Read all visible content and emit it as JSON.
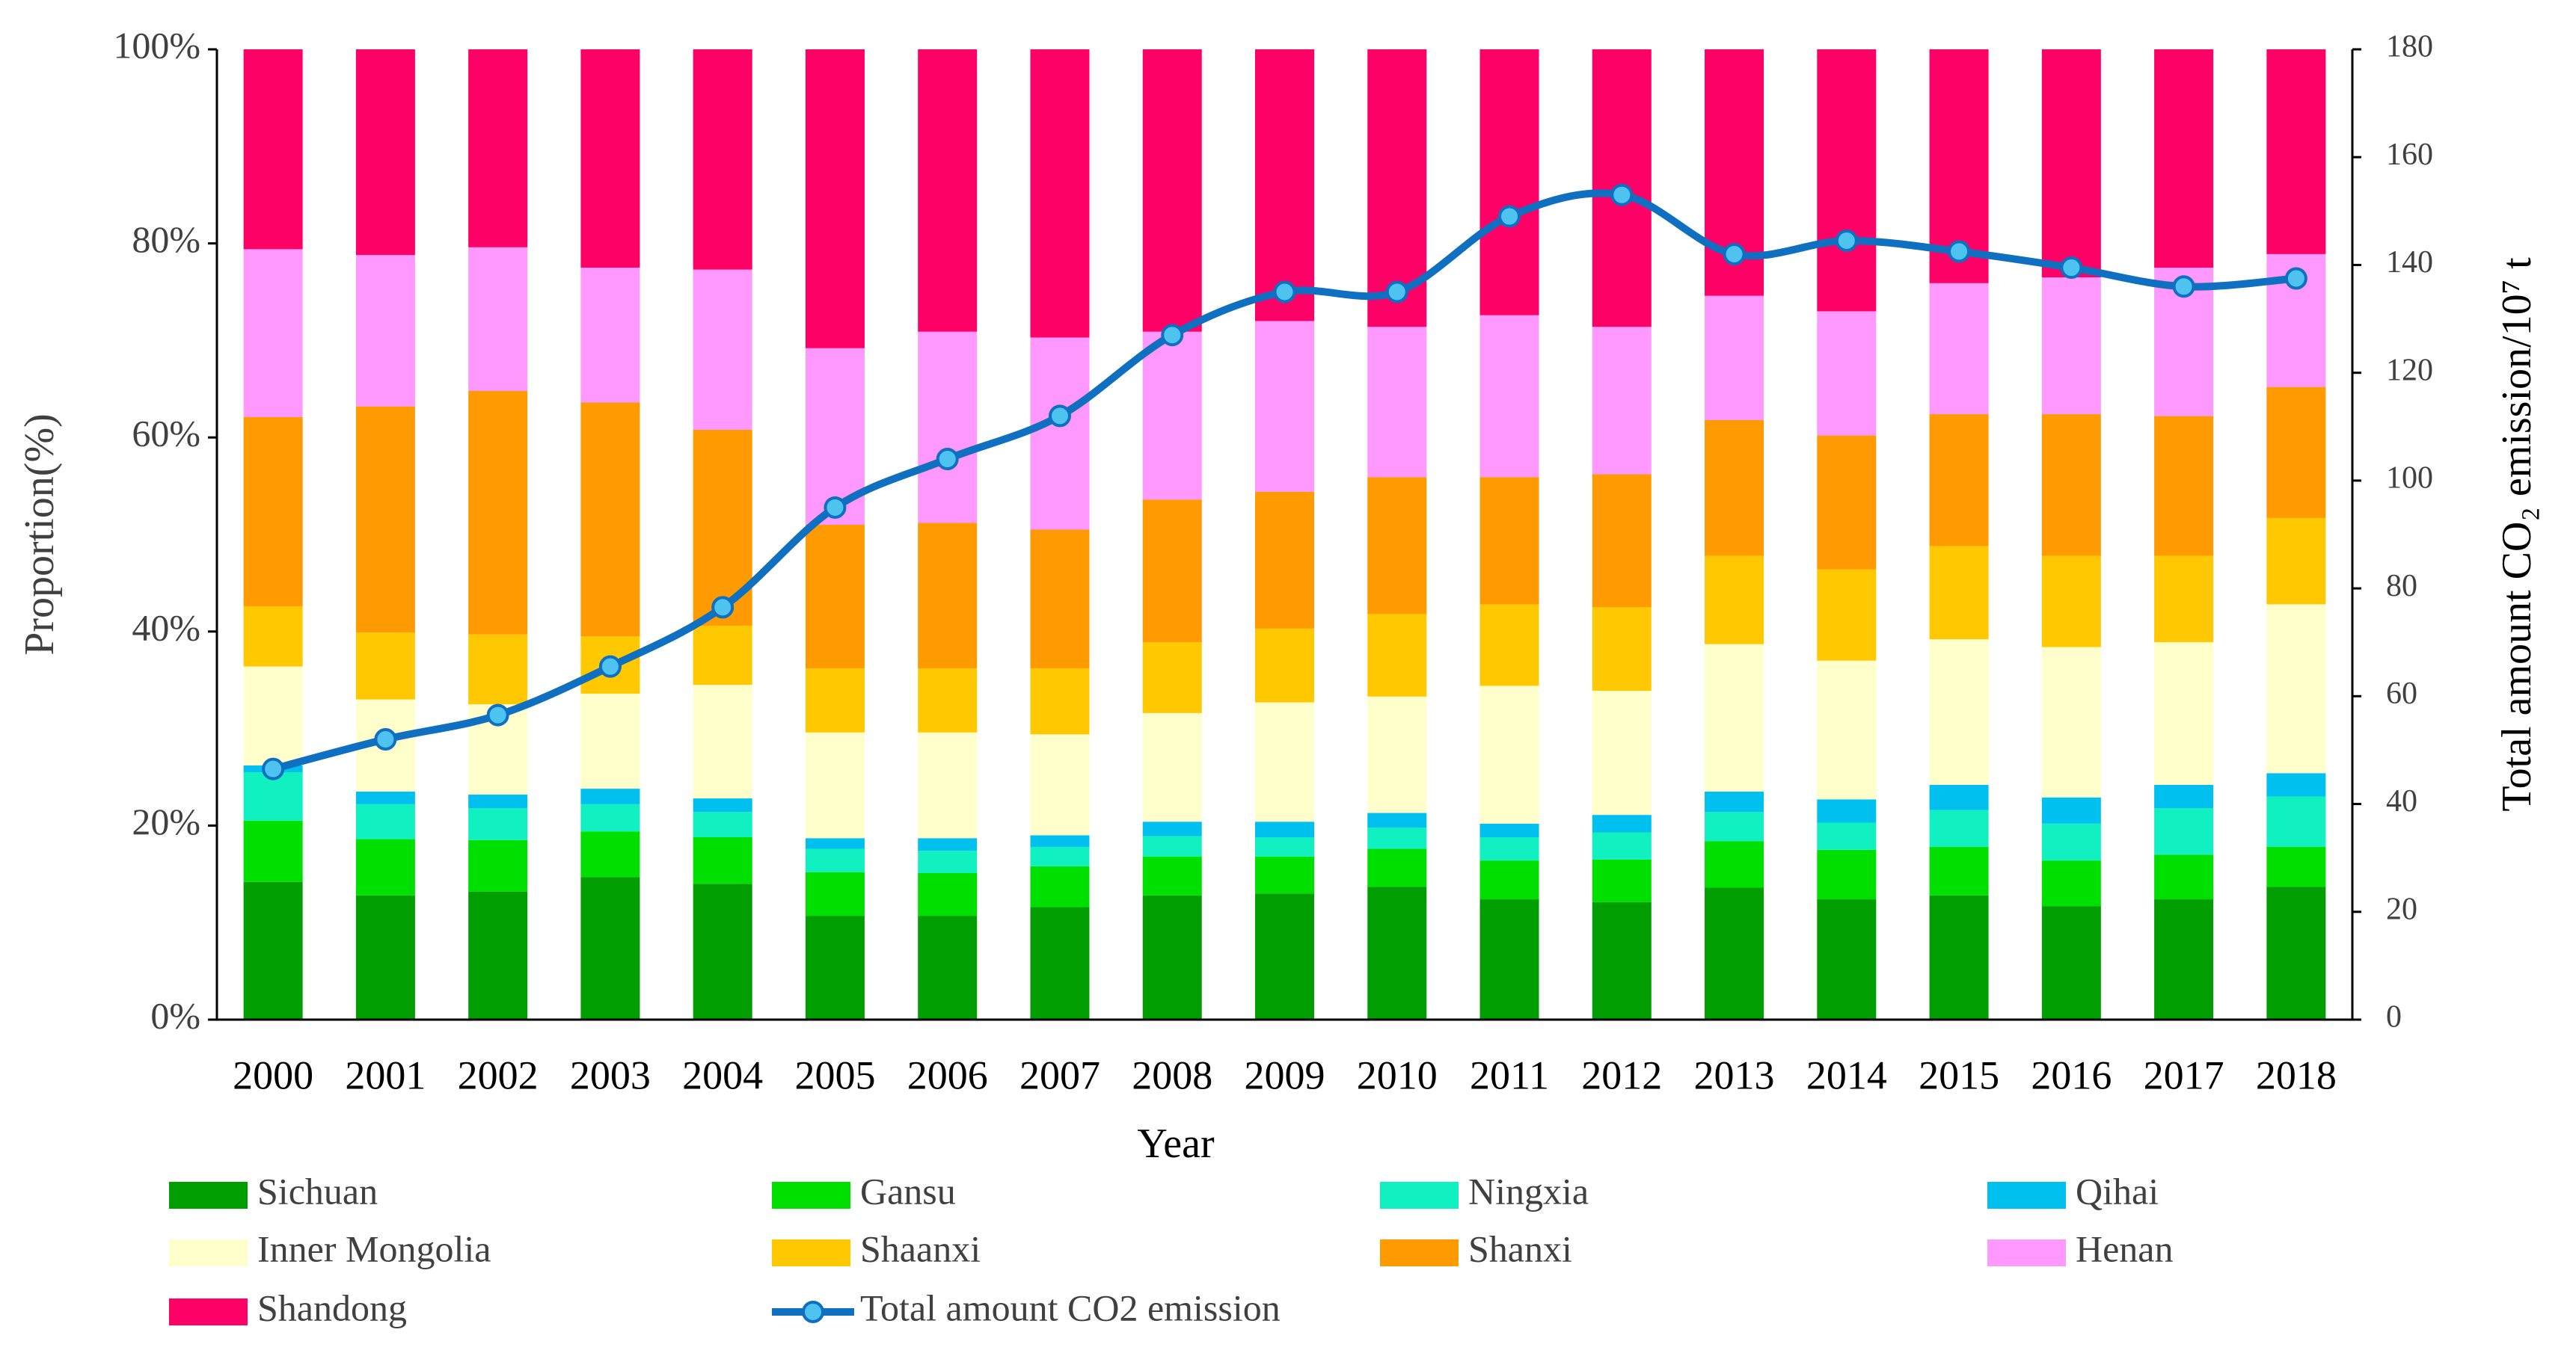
{
  "chart_data": {
    "type": "bar",
    "stacked": true,
    "x_label": "Year",
    "y_label": "Proportion(%)",
    "y2_label": "Total amount CO₂ emission/10⁷ t",
    "categories": [
      "2000",
      "2001",
      "2002",
      "2003",
      "2004",
      "2005",
      "2006",
      "2007",
      "2008",
      "2009",
      "2010",
      "2011",
      "2012",
      "2013",
      "2014",
      "2015",
      "2016",
      "2017",
      "2018"
    ],
    "ylim": [
      0,
      100
    ],
    "yticks": [
      {
        "value": 0,
        "label": "0%"
      },
      {
        "value": 20,
        "label": "20%"
      },
      {
        "value": 40,
        "label": "40%"
      },
      {
        "value": 60,
        "label": "60%"
      },
      {
        "value": 80,
        "label": "80%"
      },
      {
        "value": 100,
        "label": "100%"
      }
    ],
    "y2lim": [
      0,
      180
    ],
    "y2ticks": [
      0,
      20,
      40,
      60,
      80,
      100,
      120,
      140,
      160,
      180
    ],
    "series": [
      {
        "name": "Sichuan",
        "color": "#009e00",
        "values": [
          14.2,
          12.8,
          13.2,
          14.7,
          14.0,
          10.7,
          10.7,
          11.6,
          12.8,
          13.0,
          13.7,
          12.4,
          12.1,
          13.6,
          12.4,
          12.8,
          11.7,
          12.4,
          13.7
        ]
      },
      {
        "name": "Gansu",
        "color": "#00e000",
        "values": [
          6.3,
          5.8,
          5.3,
          4.7,
          4.8,
          4.5,
          4.4,
          4.2,
          4.0,
          3.8,
          3.9,
          4.0,
          4.4,
          4.8,
          5.1,
          5.0,
          4.7,
          4.6,
          4.1
        ]
      },
      {
        "name": "Ningxia",
        "color": "#10f0c0",
        "values": [
          5.0,
          3.6,
          3.3,
          2.8,
          2.6,
          2.4,
          2.3,
          2.0,
          2.1,
          2.0,
          2.2,
          2.4,
          2.8,
          3.0,
          2.8,
          3.8,
          3.8,
          4.8,
          5.2
        ]
      },
      {
        "name": "Qihai",
        "color": "#00c0f0",
        "values": [
          0.7,
          1.3,
          1.4,
          1.6,
          1.4,
          1.1,
          1.3,
          1.2,
          1.5,
          1.6,
          1.5,
          1.4,
          1.8,
          2.1,
          2.4,
          2.6,
          2.7,
          2.4,
          2.4
        ]
      },
      {
        "name": "Inner Mongolia",
        "color": "#ffffcc",
        "values": [
          10.2,
          9.5,
          9.3,
          9.8,
          11.7,
          10.9,
          10.9,
          10.4,
          11.2,
          12.3,
          12.0,
          14.2,
          12.8,
          15.2,
          14.3,
          15.0,
          15.5,
          14.7,
          17.4
        ]
      },
      {
        "name": "Shaanxi",
        "color": "#ffc800",
        "values": [
          6.2,
          6.9,
          7.2,
          5.9,
          6.1,
          6.6,
          6.6,
          6.8,
          7.3,
          7.6,
          8.5,
          8.4,
          8.6,
          9.1,
          9.4,
          9.6,
          9.4,
          8.9,
          8.9
        ]
      },
      {
        "name": "Shanxi",
        "color": "#ff9a00",
        "values": [
          19.5,
          23.3,
          25.1,
          24.1,
          20.2,
          14.8,
          15.0,
          14.3,
          14.7,
          14.1,
          14.1,
          13.1,
          13.7,
          14.0,
          13.8,
          13.6,
          14.6,
          14.4,
          13.5
        ]
      },
      {
        "name": "Henan",
        "color": "#ff99ff",
        "values": [
          17.3,
          15.6,
          14.8,
          13.9,
          16.5,
          18.2,
          19.7,
          19.8,
          17.3,
          17.6,
          15.5,
          16.7,
          15.2,
          12.8,
          12.8,
          13.5,
          14.1,
          15.3,
          13.7
        ]
      },
      {
        "name": "Shandong",
        "color": "#ff0066",
        "values": [
          20.6,
          21.2,
          20.4,
          22.5,
          22.7,
          30.8,
          29.1,
          29.7,
          29.1,
          28.0,
          28.6,
          27.4,
          28.6,
          25.4,
          27.0,
          24.1,
          23.5,
          22.5,
          21.1
        ]
      },
      {
        "name": "Total amount CO2 emission",
        "type": "line",
        "axis": "y2",
        "color": "#0f6fc0",
        "marker_color": "#4fc3f0",
        "values": [
          46.5,
          52,
          56.5,
          65.5,
          76.5,
          95,
          104,
          112,
          127,
          135,
          135,
          149,
          153,
          142,
          144.5,
          142.5,
          139.5,
          136,
          137.5
        ]
      }
    ]
  }
}
